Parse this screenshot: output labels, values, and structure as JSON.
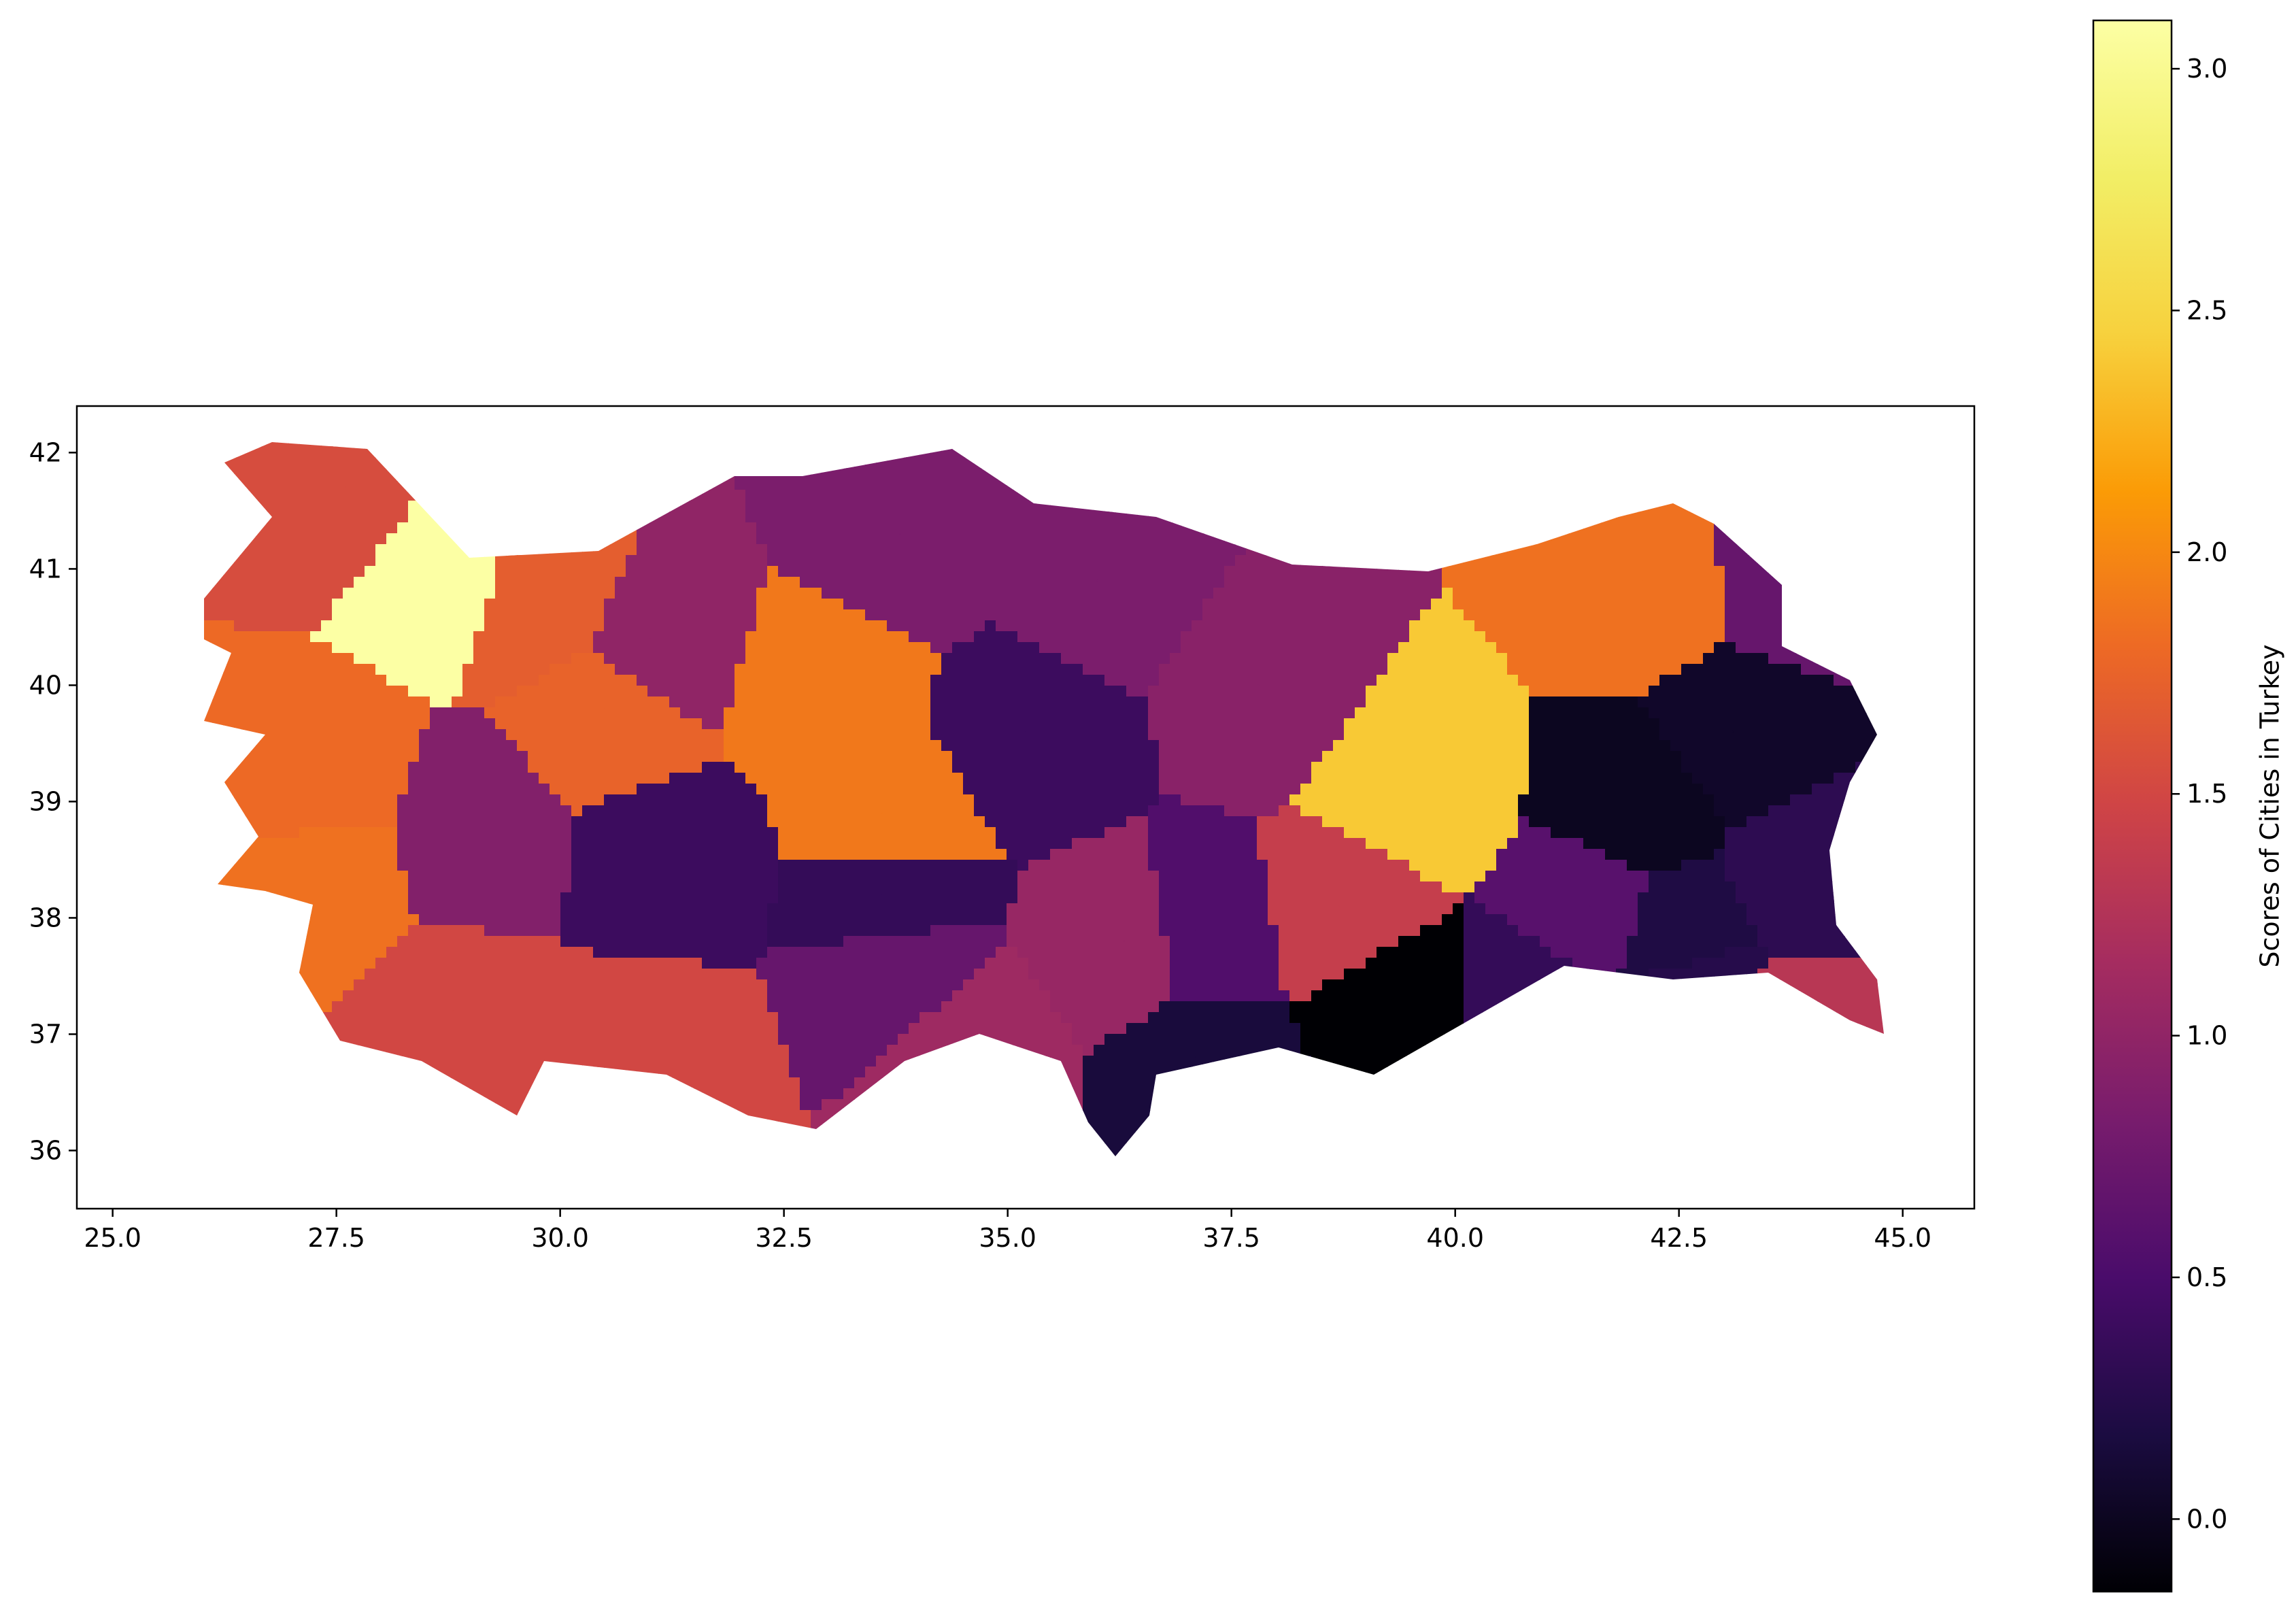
{
  "chart_data": {
    "type": "heatmap",
    "subtype": "choropleth map of Turkish provinces",
    "x": {
      "range": [
        24.6,
        45.8
      ],
      "ticks": [
        25.0,
        27.5,
        30.0,
        32.5,
        35.0,
        37.5,
        40.0,
        42.5,
        45.0
      ],
      "tick_labels": [
        "25.0",
        "27.5",
        "30.0",
        "32.5",
        "35.0",
        "37.5",
        "40.0",
        "42.5",
        "45.0"
      ]
    },
    "y": {
      "range": [
        35.5,
        42.4
      ],
      "ticks": [
        36,
        37,
        38,
        39,
        40,
        41,
        42
      ],
      "tick_labels": [
        "36",
        "37",
        "38",
        "39",
        "40",
        "41",
        "42"
      ]
    },
    "grid": false,
    "colorbar": {
      "label": "Scores of Cities in Turkey",
      "colormap": "inferno",
      "range": [
        -0.15,
        3.1
      ],
      "ticks": [
        0.0,
        0.5,
        1.0,
        1.5,
        2.0,
        2.5,
        3.0
      ],
      "tick_labels": [
        "0.0",
        "0.5",
        "1.0",
        "1.5",
        "2.0",
        "2.5",
        "3.0"
      ]
    },
    "regions": [
      {
        "lon": 28.6,
        "lat": 41.1,
        "value": 3.1
      },
      {
        "lon": 39.4,
        "lat": 39.15,
        "value": 2.4
      },
      {
        "lon": 32.9,
        "lat": 40.0,
        "value": 1.9
      },
      {
        "lon": 33.6,
        "lat": 38.9,
        "value": 1.9
      },
      {
        "lon": 42.1,
        "lat": 40.9,
        "value": 1.85
      },
      {
        "lon": 27.3,
        "lat": 38.4,
        "value": 1.85
      },
      {
        "lon": 27.2,
        "lat": 39.2,
        "value": 1.8
      },
      {
        "lon": 30.5,
        "lat": 39.8,
        "value": 1.75
      },
      {
        "lon": 29.8,
        "lat": 40.8,
        "value": 1.7
      },
      {
        "lon": 27.6,
        "lat": 41.7,
        "value": 1.55
      },
      {
        "lon": 28.8,
        "lat": 37.2,
        "value": 1.5
      },
      {
        "lon": 30.9,
        "lat": 36.9,
        "value": 1.5
      },
      {
        "lon": 38.7,
        "lat": 38.1,
        "value": 1.4
      },
      {
        "lon": 43.9,
        "lat": 37.1,
        "value": 1.3
      },
      {
        "lon": 34.5,
        "lat": 36.9,
        "value": 1.1
      },
      {
        "lon": 36.3,
        "lat": 37.8,
        "value": 1.05
      },
      {
        "lon": 31.0,
        "lat": 40.4,
        "value": 1.0
      },
      {
        "lon": 37.8,
        "lat": 40.0,
        "value": 0.95
      },
      {
        "lon": 29.0,
        "lat": 38.7,
        "value": 0.9
      },
      {
        "lon": 33.8,
        "lat": 41.3,
        "value": 0.85
      },
      {
        "lon": 36.0,
        "lat": 40.9,
        "value": 0.85
      },
      {
        "lon": 33.7,
        "lat": 37.6,
        "value": 0.7
      },
      {
        "lon": 43.7,
        "lat": 41.0,
        "value": 0.7
      },
      {
        "lon": 41.5,
        "lat": 38.1,
        "value": 0.6
      },
      {
        "lon": 37.1,
        "lat": 37.9,
        "value": 0.55
      },
      {
        "lon": 31.1,
        "lat": 38.5,
        "value": 0.4
      },
      {
        "lon": 35.2,
        "lat": 39.6,
        "value": 0.4
      },
      {
        "lon": 33.6,
        "lat": 38.2,
        "value": 0.35
      },
      {
        "lon": 40.8,
        "lat": 37.3,
        "value": 0.35
      },
      {
        "lon": 43.9,
        "lat": 38.4,
        "value": 0.3
      },
      {
        "lon": 42.4,
        "lat": 37.9,
        "value": 0.2
      },
      {
        "lon": 42.6,
        "lat": 37.4,
        "value": 0.25
      },
      {
        "lon": 37.1,
        "lat": 36.8,
        "value": 0.15
      },
      {
        "lon": 43.1,
        "lat": 39.6,
        "value": 0.05
      },
      {
        "lon": 42.0,
        "lat": 39.0,
        "value": 0.0
      },
      {
        "lon": 39.3,
        "lat": 37.3,
        "value": -0.15
      }
    ]
  }
}
